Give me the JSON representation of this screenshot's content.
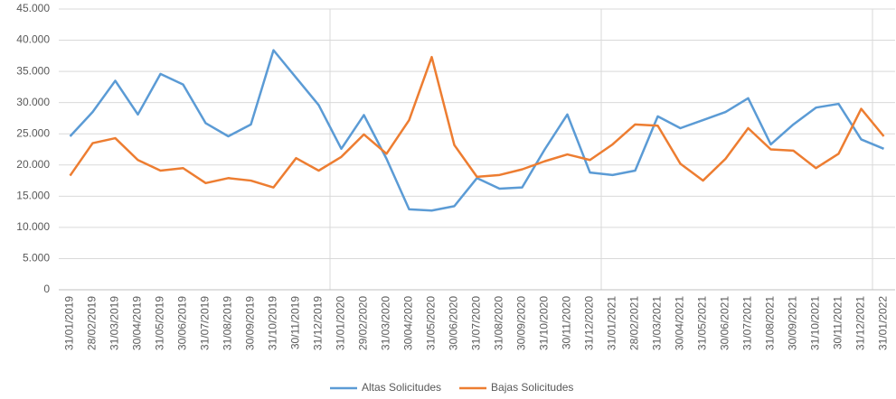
{
  "chart_data": {
    "type": "line",
    "categories": [
      "31/01/2019",
      "28/02/2019",
      "31/03/2019",
      "30/04/2019",
      "31/05/2019",
      "30/06/2019",
      "31/07/2019",
      "31/08/2019",
      "30/09/2019",
      "31/10/2019",
      "30/11/2019",
      "31/12/2019",
      "31/01/2020",
      "29/02/2020",
      "31/03/2020",
      "30/04/2020",
      "31/05/2020",
      "30/06/2020",
      "31/07/2020",
      "31/08/2020",
      "30/09/2020",
      "31/10/2020",
      "30/11/2020",
      "31/12/2020",
      "31/01/2021",
      "28/02/2021",
      "31/03/2021",
      "30/04/2021",
      "31/05/2021",
      "30/06/2021",
      "31/07/2021",
      "31/08/2021",
      "30/09/2021",
      "31/10/2021",
      "30/11/2021",
      "31/12/2021",
      "31/01/2022"
    ],
    "series": [
      {
        "name": "Altas Solicitudes",
        "color": "#5b9bd5",
        "values": [
          24600,
          28500,
          33500,
          28100,
          34600,
          32900,
          26700,
          24600,
          26500,
          38400,
          34000,
          29600,
          22600,
          28000,
          21000,
          12900,
          12700,
          13400,
          17900,
          16200,
          16400,
          22500,
          28100,
          18800,
          18400,
          19100,
          27800,
          25900,
          27200,
          28500,
          30700,
          23300,
          26500,
          29200,
          29800,
          24100,
          22600
        ]
      },
      {
        "name": "Bajas Solicitudes",
        "color": "#ed7d31",
        "values": [
          18300,
          23500,
          24300,
          20800,
          19100,
          19500,
          17100,
          17900,
          17500,
          16400,
          21100,
          19100,
          21300,
          24900,
          21800,
          27200,
          37300,
          23200,
          18100,
          18400,
          19300,
          20600,
          21700,
          20800,
          23300,
          26500,
          26300,
          20200,
          17500,
          21000,
          25900,
          22500,
          22300,
          19500,
          21800,
          29000,
          24600
        ]
      }
    ],
    "ylim": [
      0,
      45000
    ],
    "yticks": [
      0,
      {
        "value": 5000,
        "label": "5.000"
      },
      {
        "value": 10000,
        "label": "10.000"
      },
      {
        "value": 15000,
        "label": "15.000"
      },
      {
        "value": 20000,
        "label": "20.000"
      },
      {
        "value": 25000,
        "label": "25.000"
      },
      {
        "value": 30000,
        "label": "30.000"
      },
      {
        "value": 35000,
        "label": "35.000"
      },
      {
        "value": 40000,
        "label": "40.000"
      },
      {
        "value": 45000,
        "label": "45.000"
      }
    ],
    "grid": true,
    "legend": "bottom"
  }
}
